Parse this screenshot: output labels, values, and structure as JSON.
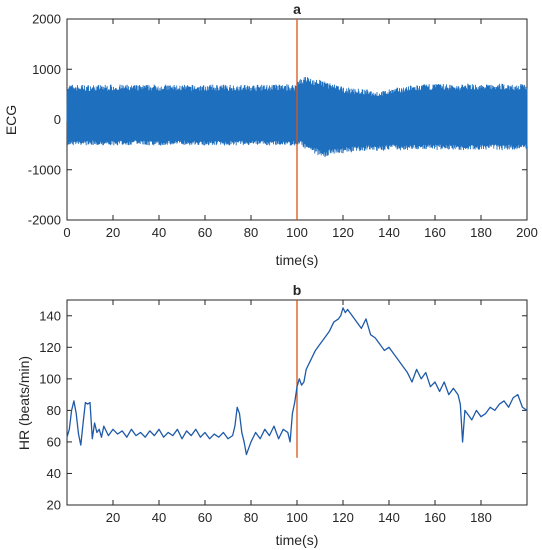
{
  "chart_data": [
    {
      "type": "line",
      "title": "a",
      "xlabel": "time(s)",
      "ylabel": "ECG",
      "xlim": [
        0,
        200
      ],
      "ylim": [
        -2000,
        2000
      ],
      "xticks": [
        0,
        20,
        40,
        60,
        80,
        100,
        120,
        140,
        160,
        180,
        200
      ],
      "yticks": [
        -2000,
        -1000,
        0,
        1000,
        2000
      ],
      "grid": false,
      "colors": {
        "signal": "#1f6fbf",
        "marker": "#d9541a"
      },
      "marker_x": 100,
      "envelope": {
        "x": [
          0,
          10,
          20,
          30,
          40,
          50,
          60,
          70,
          80,
          90,
          99,
          101,
          104,
          108,
          112,
          116,
          120,
          125,
          130,
          135,
          140,
          145,
          150,
          155,
          160,
          165,
          170,
          175,
          180,
          185,
          190,
          195,
          200
        ],
        "upper": [
          700,
          690,
          700,
          690,
          700,
          690,
          690,
          700,
          690,
          700,
          700,
          850,
          870,
          800,
          780,
          700,
          650,
          620,
          600,
          550,
          600,
          650,
          680,
          700,
          720,
          710,
          700,
          720,
          700,
          710,
          720,
          700,
          710
        ],
        "lower": [
          -520,
          -510,
          -520,
          -510,
          -520,
          -510,
          -520,
          -520,
          -510,
          -520,
          -520,
          -500,
          -600,
          -700,
          -750,
          -700,
          -680,
          -650,
          -620,
          -650,
          -600,
          -620,
          -600,
          -600,
          -610,
          -600,
          -620,
          -600,
          -610,
          -600,
          -620,
          -600,
          -610
        ]
      }
    },
    {
      "type": "line",
      "title": "b",
      "xlabel": "time(s)",
      "ylabel": "HR (beats/min)",
      "xlim": [
        0,
        200
      ],
      "ylim": [
        20,
        150
      ],
      "xticks": [
        20,
        40,
        60,
        80,
        100,
        120,
        140,
        160,
        180
      ],
      "yticks": [
        20,
        40,
        60,
        80,
        100,
        120,
        140
      ],
      "grid": false,
      "colors": {
        "signal": "#1f5aa8",
        "marker": "#d9541a"
      },
      "marker_x": 100,
      "marker_y_range": [
        50,
        150
      ],
      "series": [
        {
          "x": [
            0,
            1,
            2,
            3,
            4,
            5,
            6,
            7,
            8,
            9,
            10,
            11,
            12,
            13,
            14,
            15,
            16,
            18,
            20,
            22,
            24,
            26,
            28,
            30,
            32,
            34,
            36,
            38,
            40,
            42,
            44,
            46,
            48,
            50,
            52,
            54,
            56,
            58,
            60,
            62,
            64,
            66,
            68,
            70,
            72,
            73,
            74,
            75,
            76,
            77,
            78,
            80,
            82,
            84,
            86,
            88,
            90,
            92,
            94,
            96,
            97,
            98,
            99,
            100,
            101,
            102,
            103,
            104,
            106,
            108,
            110,
            112,
            114,
            116,
            118,
            119,
            120,
            121,
            122,
            124,
            126,
            128,
            130,
            132,
            134,
            136,
            138,
            140,
            142,
            144,
            146,
            148,
            150,
            152,
            154,
            156,
            158,
            160,
            162,
            164,
            166,
            168,
            170,
            171,
            172,
            173,
            174,
            176,
            178,
            180,
            182,
            184,
            186,
            188,
            190,
            192,
            194,
            196,
            198,
            200
          ],
          "y": [
            63,
            68,
            80,
            86,
            78,
            65,
            58,
            72,
            85,
            84,
            85,
            62,
            72,
            66,
            68,
            63,
            70,
            64,
            68,
            65,
            67,
            63,
            68,
            64,
            66,
            63,
            67,
            64,
            68,
            63,
            66,
            64,
            68,
            62,
            67,
            64,
            68,
            63,
            66,
            62,
            65,
            63,
            66,
            62,
            64,
            70,
            82,
            78,
            66,
            60,
            52,
            60,
            66,
            62,
            68,
            64,
            70,
            62,
            68,
            66,
            60,
            78,
            85,
            95,
            100,
            96,
            98,
            106,
            112,
            118,
            122,
            126,
            130,
            136,
            138,
            140,
            145,
            142,
            144,
            140,
            136,
            132,
            138,
            128,
            126,
            122,
            118,
            120,
            116,
            112,
            108,
            104,
            98,
            106,
            100,
            104,
            95,
            98,
            92,
            98,
            90,
            94,
            90,
            84,
            60,
            80,
            78,
            74,
            80,
            76,
            78,
            82,
            80,
            84,
            86,
            82,
            88,
            90,
            82,
            80
          ]
        }
      ]
    }
  ]
}
